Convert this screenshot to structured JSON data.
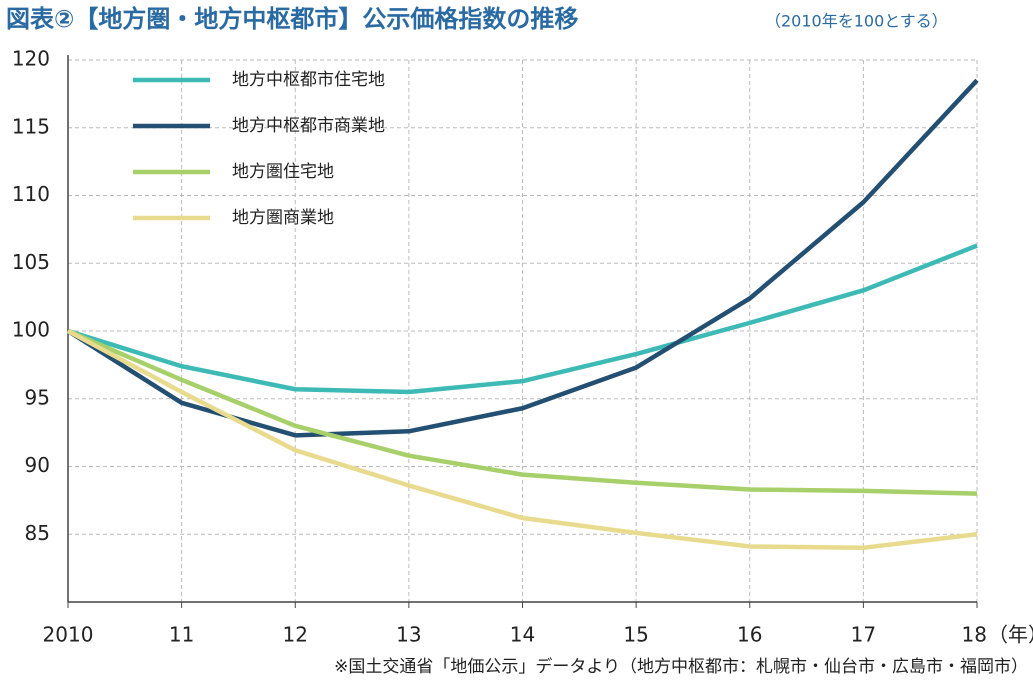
{
  "chart_data": {
    "type": "line",
    "title": "図表②【地方圏・地方中枢都市】公示価格指数の推移",
    "subtitle": "（2010年を100とする）",
    "x_label": "（年）",
    "note": "※国土交通省「地価公示」データより（地方中枢都市：札幌市・仙台市・広島市・福岡市）",
    "categories": [
      "2010",
      "11",
      "12",
      "13",
      "14",
      "15",
      "16",
      "17",
      "18"
    ],
    "series": [
      {
        "name": "地方中枢都市住宅地",
        "color": "#3dbab5",
        "values": [
          100,
          97.4,
          95.7,
          95.5,
          96.3,
          98.3,
          100.6,
          103.0,
          106.3
        ]
      },
      {
        "name": "地方中枢都市商業地",
        "color": "#234f72",
        "values": [
          100,
          94.7,
          92.3,
          92.6,
          94.3,
          97.3,
          102.4,
          109.5,
          118.5
        ]
      },
      {
        "name": "地方圏住宅地",
        "color": "#a7cf6a",
        "values": [
          100,
          96.4,
          93.0,
          90.8,
          89.4,
          88.8,
          88.3,
          88.2,
          88.0
        ]
      },
      {
        "name": "地方圏商業地",
        "color": "#e8db8e",
        "values": [
          100,
          95.5,
          91.2,
          88.6,
          86.2,
          85.1,
          84.1,
          84.0,
          85.0
        ]
      }
    ],
    "ylim": [
      80,
      120
    ],
    "yticks": [
      85,
      90,
      95,
      100,
      105,
      110,
      115,
      120
    ],
    "grid": true,
    "legend_position": "upper-left"
  }
}
